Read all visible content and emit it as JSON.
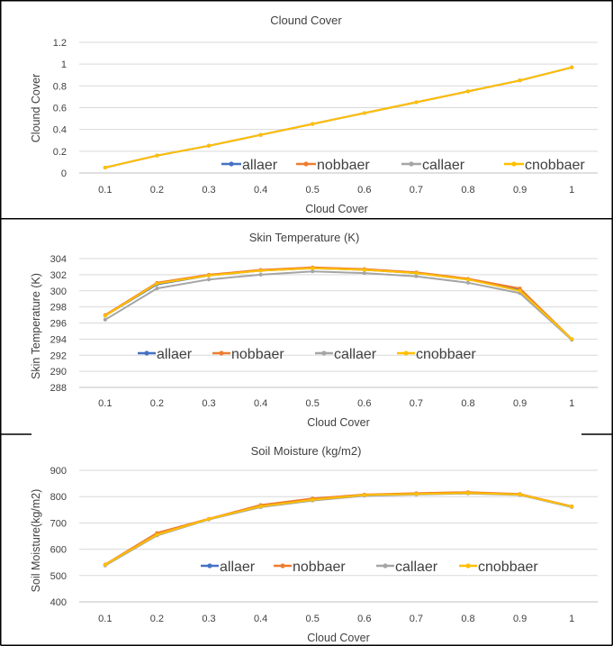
{
  "chart_data": [
    {
      "type": "line",
      "title": "Clound Cover",
      "xlabel": "Cloud Cover",
      "ylabel": "Clound Cover",
      "x": [
        "0.1",
        "0.2",
        "0.3",
        "0.4",
        "0.5",
        "0.6",
        "0.7",
        "0.8",
        "0.9",
        "1"
      ],
      "ylim": [
        0,
        1.2
      ],
      "yticks": [
        0,
        0.2,
        0.4,
        0.6,
        0.8,
        1,
        1.2
      ],
      "ytick_labels": [
        "0",
        "0.2",
        "0.4",
        "0.6",
        "0.8",
        "1",
        "1.2"
      ],
      "grid": true,
      "legend_position": "bottom-right",
      "series": [
        {
          "name": "allaer",
          "color": "#4472c4",
          "values": [
            0.05,
            0.16,
            0.25,
            0.35,
            0.45,
            0.55,
            0.65,
            0.75,
            0.85,
            0.97
          ]
        },
        {
          "name": "nobbaer",
          "color": "#ed7d31",
          "values": [
            0.05,
            0.16,
            0.25,
            0.35,
            0.45,
            0.55,
            0.65,
            0.75,
            0.85,
            0.97
          ]
        },
        {
          "name": "callaer",
          "color": "#a5a5a5",
          "values": [
            0.05,
            0.16,
            0.25,
            0.35,
            0.45,
            0.55,
            0.65,
            0.75,
            0.85,
            0.97
          ]
        },
        {
          "name": "cnobbaer",
          "color": "#ffc000",
          "values": [
            0.05,
            0.16,
            0.25,
            0.35,
            0.45,
            0.55,
            0.65,
            0.75,
            0.85,
            0.97
          ]
        }
      ]
    },
    {
      "type": "line",
      "title": "Skin Temperature (K)",
      "xlabel": "Cloud Cover",
      "ylabel": "Skin Temperature (K)",
      "x": [
        "0.1",
        "0.2",
        "0.3",
        "0.4",
        "0.5",
        "0.6",
        "0.7",
        "0.8",
        "0.9",
        "1"
      ],
      "ylim": [
        288,
        304
      ],
      "yticks": [
        288,
        290,
        292,
        294,
        296,
        298,
        300,
        302,
        304
      ],
      "ytick_labels": [
        "288",
        "290",
        "292",
        "294",
        "296",
        "298",
        "300",
        "302",
        "304"
      ],
      "grid": true,
      "legend_position": "bottom",
      "series": [
        {
          "name": "allaer",
          "color": "#4472c4",
          "values": [
            296.9,
            300.8,
            301.9,
            302.5,
            302.8,
            302.6,
            302.2,
            301.4,
            300.1,
            294.0
          ]
        },
        {
          "name": "nobbaer",
          "color": "#ed7d31",
          "values": [
            297.0,
            301.0,
            302.0,
            302.6,
            302.9,
            302.7,
            302.3,
            301.5,
            300.3,
            294.0
          ]
        },
        {
          "name": "callaer",
          "color": "#a5a5a5",
          "values": [
            296.4,
            300.3,
            301.4,
            302.0,
            302.4,
            302.2,
            301.8,
            301.0,
            299.7,
            293.9
          ]
        },
        {
          "name": "cnobbaer",
          "color": "#ffc000",
          "values": [
            296.9,
            300.9,
            301.9,
            302.5,
            302.8,
            302.6,
            302.2,
            301.4,
            300.0,
            294.0
          ]
        }
      ]
    },
    {
      "type": "line",
      "title": "Soil Moisture (kg/m2)",
      "xlabel": "Cloud Cover",
      "ylabel": "Soil Moisture(kg/m2)",
      "x": [
        "0.1",
        "0.2",
        "0.3",
        "0.4",
        "0.5",
        "0.6",
        "0.7",
        "0.8",
        "0.9",
        "1"
      ],
      "ylim": [
        400,
        900
      ],
      "yticks": [
        400,
        500,
        600,
        700,
        800,
        900
      ],
      "ytick_labels": [
        "400",
        "500",
        "600",
        "700",
        "800",
        "900"
      ],
      "grid": true,
      "legend_position": "bottom",
      "series": [
        {
          "name": "allaer",
          "color": "#4472c4",
          "values": [
            540,
            660,
            715,
            765,
            790,
            805,
            810,
            815,
            808,
            762
          ]
        },
        {
          "name": "nobbaer",
          "color": "#ed7d31",
          "values": [
            542,
            662,
            716,
            768,
            793,
            808,
            813,
            817,
            810,
            763
          ]
        },
        {
          "name": "callaer",
          "color": "#a5a5a5",
          "values": [
            538,
            652,
            713,
            760,
            785,
            803,
            808,
            812,
            806,
            760
          ]
        },
        {
          "name": "cnobbaer",
          "color": "#ffc000",
          "values": [
            541,
            655,
            715,
            763,
            788,
            806,
            810,
            814,
            808,
            762
          ]
        }
      ]
    }
  ]
}
